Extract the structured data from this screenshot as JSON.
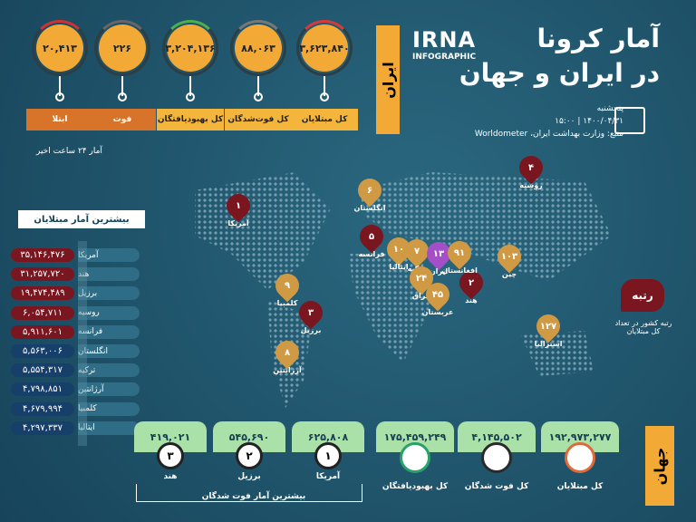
{
  "header": {
    "title": "آمار کرونا",
    "subtitle": "در ایران و جهان",
    "logo": "IRNA",
    "logo_sub": "INFOGRAPHIC",
    "day": "پنجشنبه",
    "datetime": "۱۴۰۰/۰۴/۳۱ | ۱۵:۰۰",
    "source": "منبع: وزارت بهداشت ایران، Worldometer"
  },
  "iran": {
    "label": "ایران",
    "note": "آمار ۲۴ ساعت اخیر",
    "stats": [
      {
        "value": "۳,۶۲۳,۸۴۰",
        "label": "کل مبتلایان"
      },
      {
        "value": "۸۸,۰۶۳",
        "label": "کل فوت‌شدگان"
      },
      {
        "value": "۳,۲۰۴,۱۳۶",
        "label": "کل بهبودیافتگان"
      },
      {
        "value": "۲۲۶",
        "label": "فوت"
      },
      {
        "value": "۲۰,۴۱۳",
        "label": "ابتلا"
      }
    ]
  },
  "top_infected": {
    "title": "بیشترین آمار مبتلایان",
    "rows": [
      {
        "country": "آمریکا",
        "value": "۳۵,۱۴۶,۴۷۶"
      },
      {
        "country": "هند",
        "value": "۳۱,۲۵۷,۷۲۰"
      },
      {
        "country": "برزیل",
        "value": "۱۹,۴۷۴,۴۸۹"
      },
      {
        "country": "روسیه",
        "value": "۶,۰۵۴,۷۱۱"
      },
      {
        "country": "فرانسه",
        "value": "۵,۹۱۱,۶۰۱"
      },
      {
        "country": "انگلستان",
        "value": "۵,۵۶۳,۰۰۶"
      },
      {
        "country": "ترکیه",
        "value": "۵,۵۵۴,۳۱۷"
      },
      {
        "country": "آرژانتین",
        "value": "۴,۷۹۸,۸۵۱"
      },
      {
        "country": "کلمبیا",
        "value": "۴,۶۷۹,۹۹۴"
      },
      {
        "country": "ایتالیا",
        "value": "۴,۲۹۷,۳۳۷"
      }
    ]
  },
  "map": {
    "legend_title": "رتبه",
    "legend_text": "رتبه کشور در تعداد کل مبتلایان",
    "pins": [
      {
        "rank": "۱",
        "country": "آمریکا"
      },
      {
        "rank": "۲",
        "country": "هند"
      },
      {
        "rank": "۳",
        "country": "برزیل"
      },
      {
        "rank": "۴",
        "country": "روسیه"
      },
      {
        "rank": "۵",
        "country": "فرانسه"
      },
      {
        "rank": "۶",
        "country": "انگلستان"
      },
      {
        "rank": "۷",
        "country": "ترکیه"
      },
      {
        "rank": "۸",
        "country": "آرژانتین"
      },
      {
        "rank": "۹",
        "country": "کلمبیا"
      },
      {
        "rank": "۱۰",
        "country": "ایتالیا"
      },
      {
        "rank": "۱۳",
        "country": "ایران"
      },
      {
        "rank": "۲۴",
        "country": "عراق"
      },
      {
        "rank": "۴۵",
        "country": "عربستان"
      },
      {
        "rank": "۹۱",
        "country": "افغانستان"
      },
      {
        "rank": "۱۰۳",
        "country": "چین"
      },
      {
        "rank": "۱۲۷",
        "country": "استرالیا"
      }
    ]
  },
  "world": {
    "label": "جهان",
    "stats": [
      {
        "value": "۱۹۲,۹۷۳,۲۷۷",
        "label": "کل مبتلایان"
      },
      {
        "value": "۴,۱۴۵,۵۰۲",
        "label": "کل فوت شدگان"
      },
      {
        "value": "۱۷۵,۴۵۹,۲۴۹",
        "label": "کل بهبودیافتگان"
      }
    ],
    "deaths_title": "بیشترین آمار فوت شدگان",
    "deaths": [
      {
        "rank": "۱",
        "country": "آمریکا",
        "value": "۶۲۵,۸۰۸"
      },
      {
        "rank": "۲",
        "country": "برزیل",
        "value": "۵۴۵,۶۹۰"
      },
      {
        "rank": "۳",
        "country": "هند",
        "value": "۴۱۹,۰۲۱"
      }
    ]
  }
}
